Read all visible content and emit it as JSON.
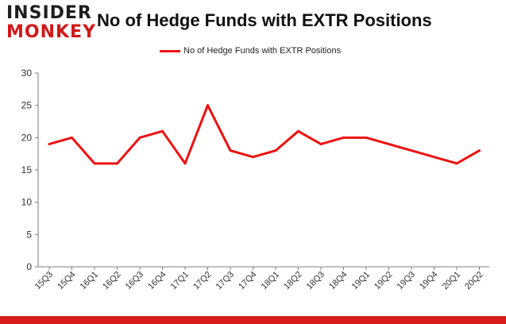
{
  "logo": {
    "line1": "INSIDER",
    "line2": "MONKEY"
  },
  "colors": {
    "series": "#ee1111",
    "brand": "#d0191a",
    "axis": "#808080"
  },
  "chart_data": {
    "type": "line",
    "title": "No of Hedge Funds with EXTR Positions",
    "xlabel": "",
    "ylabel": "",
    "ylim": [
      0,
      30
    ],
    "yticks": [
      0,
      5,
      10,
      15,
      20,
      25,
      30
    ],
    "grid": false,
    "legend_position": "top-center",
    "categories": [
      "15Q3",
      "15Q4",
      "16Q1",
      "16Q2",
      "16Q3",
      "16Q4",
      "17Q1",
      "17Q2",
      "17Q3",
      "17Q4",
      "18Q1",
      "18Q2",
      "18Q3",
      "18Q4",
      "19Q1",
      "19Q2",
      "19Q3",
      "19Q4",
      "20Q1",
      "20Q2"
    ],
    "series": [
      {
        "name": "No of Hedge Funds with EXTR Positions",
        "values": [
          19,
          20,
          16,
          16,
          20,
          21,
          16,
          25,
          18,
          17,
          18,
          21,
          19,
          20,
          20,
          null,
          null,
          null,
          16,
          18
        ]
      }
    ]
  }
}
